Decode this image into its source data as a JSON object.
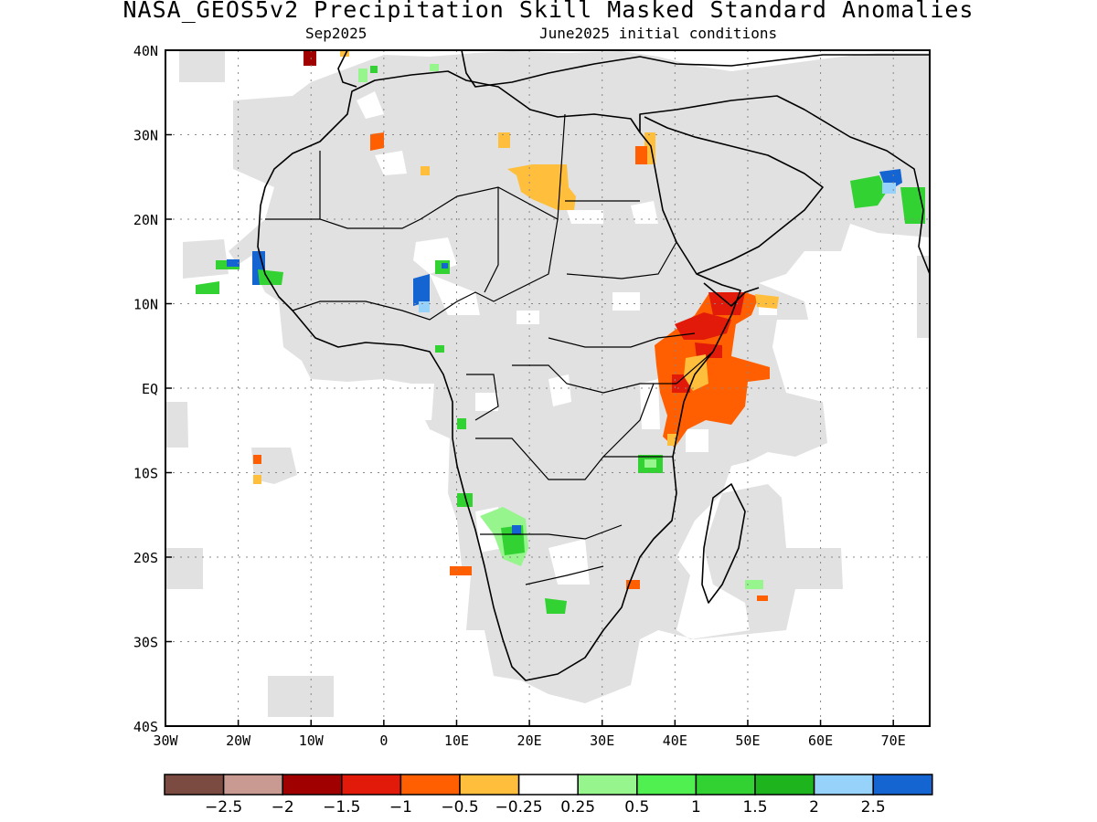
{
  "title": "NASA_GEOS5v2 Precipitation Skill Masked Standard Anomalies",
  "subtitle_left": "Sep2025",
  "subtitle_right": "June2025 initial conditions",
  "map": {
    "lon_range": [
      -30,
      75
    ],
    "lat_range": [
      -40,
      40
    ],
    "lon_ticks": [
      {
        "value": -30,
        "label": "30W"
      },
      {
        "value": -20,
        "label": "20W"
      },
      {
        "value": -10,
        "label": "10W"
      },
      {
        "value": 0,
        "label": "0"
      },
      {
        "value": 10,
        "label": "10E"
      },
      {
        "value": 20,
        "label": "20E"
      },
      {
        "value": 30,
        "label": "30E"
      },
      {
        "value": 40,
        "label": "40E"
      },
      {
        "value": 50,
        "label": "50E"
      },
      {
        "value": 60,
        "label": "60E"
      },
      {
        "value": 70,
        "label": "70E"
      }
    ],
    "lat_ticks": [
      {
        "value": 40,
        "label": "40N"
      },
      {
        "value": 30,
        "label": "30N"
      },
      {
        "value": 20,
        "label": "20N"
      },
      {
        "value": 10,
        "label": "10N"
      },
      {
        "value": 0,
        "label": "EQ"
      },
      {
        "value": -10,
        "label": "10S"
      },
      {
        "value": -20,
        "label": "20S"
      },
      {
        "value": -30,
        "label": "30S"
      },
      {
        "value": -40,
        "label": "40S"
      }
    ],
    "grid": true,
    "mask_color": "#e1e1e1",
    "coast_color": "#000000"
  },
  "colorbar": {
    "colors": [
      "#7b4b41",
      "#c89a91",
      "#a10000",
      "#e11a0a",
      "#ff5f00",
      "#ffbe3c",
      "#ffffff",
      "#96f58c",
      "#50f050",
      "#32d232",
      "#1eb41e",
      "#96d2fa",
      "#1464d2"
    ],
    "labels": [
      "−2.5",
      "−2",
      "−1.5",
      "−1",
      "−0.5",
      "−0.25",
      "0.25",
      "0.5",
      "1",
      "1.5",
      "2",
      "2.5"
    ]
  }
}
